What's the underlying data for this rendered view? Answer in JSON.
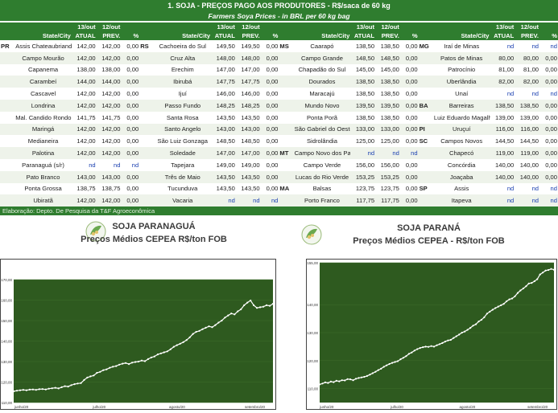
{
  "header": {
    "title": "1. SOJA - PREÇOS PAGO AOS PRODUTORES - R$/saca de 60 kg",
    "subtitle": "Farmers Soya Prices - in BRL per 60 kg bag"
  },
  "columns": {
    "state_city": "State/City",
    "d13_top": "13/out",
    "d13_bot": "ATUAL",
    "d12_top": "12/out",
    "d12_bot": "PREV.",
    "pct": "%"
  },
  "groups": [
    {
      "rows": [
        {
          "st": "PR",
          "city": "Assis Chateaubriand",
          "a": "142,00",
          "p": "142,00",
          "v": "0,00"
        },
        {
          "st": "",
          "city": "Campo Mourão",
          "a": "142,00",
          "p": "142,00",
          "v": "0,00"
        },
        {
          "st": "",
          "city": "Capanema",
          "a": "138,00",
          "p": "138,00",
          "v": "0,00"
        },
        {
          "st": "",
          "city": "Carambeí",
          "a": "144,00",
          "p": "144,00",
          "v": "0,00"
        },
        {
          "st": "",
          "city": "Cascavel",
          "a": "142,00",
          "p": "142,00",
          "v": "0,00"
        },
        {
          "st": "",
          "city": "Londrina",
          "a": "142,00",
          "p": "142,00",
          "v": "0,00"
        },
        {
          "st": "",
          "city": "Mal. Candido Rondon",
          "a": "141,75",
          "p": "141,75",
          "v": "0,00"
        },
        {
          "st": "",
          "city": "Maringá",
          "a": "142,00",
          "p": "142,00",
          "v": "0,00"
        },
        {
          "st": "",
          "city": "Medianeira",
          "a": "142,00",
          "p": "142,00",
          "v": "0,00"
        },
        {
          "st": "",
          "city": "Palotina",
          "a": "142,00",
          "p": "142,00",
          "v": "0,00"
        },
        {
          "st": "",
          "city": "Paranaguá (s/r)",
          "a": "nd",
          "p": "nd",
          "v": "nd"
        },
        {
          "st": "",
          "city": "Pato Branco",
          "a": "143,00",
          "p": "143,00",
          "v": "0,00"
        },
        {
          "st": "",
          "city": "Ponta Grossa",
          "a": "138,75",
          "p": "138,75",
          "v": "0,00"
        },
        {
          "st": "",
          "city": "Ubiratã",
          "a": "142,00",
          "p": "142,00",
          "v": "0,00"
        }
      ]
    },
    {
      "rows": [
        {
          "st": "RS",
          "city": "Cachoeira do Sul",
          "a": "149,50",
          "p": "149,50",
          "v": "0,00"
        },
        {
          "st": "",
          "city": "Cruz Alta",
          "a": "148,00",
          "p": "148,00",
          "v": "0,00"
        },
        {
          "st": "",
          "city": "Erechim",
          "a": "147,00",
          "p": "147,00",
          "v": "0,00"
        },
        {
          "st": "",
          "city": "Ibirubá",
          "a": "147,75",
          "p": "147,75",
          "v": "0,00"
        },
        {
          "st": "",
          "city": "Ijuí",
          "a": "146,00",
          "p": "146,00",
          "v": "0,00"
        },
        {
          "st": "",
          "city": "Passo Fundo",
          "a": "148,25",
          "p": "148,25",
          "v": "0,00"
        },
        {
          "st": "",
          "city": "Santa Rosa",
          "a": "143,50",
          "p": "143,50",
          "v": "0,00"
        },
        {
          "st": "",
          "city": "Santo Angelo",
          "a": "143,00",
          "p": "143,00",
          "v": "0,00"
        },
        {
          "st": "",
          "city": "São Luiz Gonzaga",
          "a": "148,50",
          "p": "148,50",
          "v": "0,00"
        },
        {
          "st": "",
          "city": "Soledade",
          "a": "147,00",
          "p": "147,00",
          "v": "0,00"
        },
        {
          "st": "",
          "city": "Tapejara",
          "a": "149,00",
          "p": "149,00",
          "v": "0,00"
        },
        {
          "st": "",
          "city": "Três de Maio",
          "a": "143,50",
          "p": "143,50",
          "v": "0,00"
        },
        {
          "st": "",
          "city": "Tucunduva",
          "a": "143,50",
          "p": "143,50",
          "v": "0,00"
        },
        {
          "st": "",
          "city": "Vacaria",
          "a": "nd",
          "p": "nd",
          "v": "nd"
        }
      ]
    },
    {
      "rows": [
        {
          "st": "MS",
          "city": "Caarapó",
          "a": "138,50",
          "p": "138,50",
          "v": "0,00"
        },
        {
          "st": "",
          "city": "Campo Grande",
          "a": "148,50",
          "p": "148,50",
          "v": "0,00"
        },
        {
          "st": "",
          "city": "Chapadão do Sul",
          "a": "145,00",
          "p": "145,00",
          "v": "0,00"
        },
        {
          "st": "",
          "city": "Dourados",
          "a": "138,50",
          "p": "138,50",
          "v": "0,00"
        },
        {
          "st": "",
          "city": "Maracajú",
          "a": "138,50",
          "p": "138,50",
          "v": "0,00"
        },
        {
          "st": "",
          "city": "Mundo Novo",
          "a": "139,50",
          "p": "139,50",
          "v": "0,00"
        },
        {
          "st": "",
          "city": "Ponta Porã",
          "a": "138,50",
          "p": "138,50",
          "v": "0,00"
        },
        {
          "st": "",
          "city": "São Gabriel do Oeste",
          "a": "133,00",
          "p": "133,00",
          "v": "0,00"
        },
        {
          "st": "",
          "city": "Sidrolândia",
          "a": "125,00",
          "p": "125,00",
          "v": "0,00"
        },
        {
          "st": "MT",
          "city": "Campo Novo dos Parecis",
          "a": "nd",
          "p": "nd",
          "v": "nd"
        },
        {
          "st": "",
          "city": "Campo Verde",
          "a": "156,00",
          "p": "156,00",
          "v": "0,00"
        },
        {
          "st": "",
          "city": "Lucas do Rio Verde",
          "a": "153,25",
          "p": "153,25",
          "v": "0,00"
        },
        {
          "st": "MA",
          "city": "Balsas",
          "a": "123,75",
          "p": "123,75",
          "v": "0,00"
        },
        {
          "st": "",
          "city": "Porto Franco",
          "a": "117,75",
          "p": "117,75",
          "v": "0,00"
        }
      ]
    },
    {
      "rows": [
        {
          "st": "MG",
          "city": "Iraí de Minas",
          "a": "nd",
          "p": "nd",
          "v": "nd"
        },
        {
          "st": "",
          "city": "Patos de Minas",
          "a": "80,00",
          "p": "80,00",
          "v": "0,00"
        },
        {
          "st": "",
          "city": "Patrocínio",
          "a": "81,00",
          "p": "81,00",
          "v": "0,00"
        },
        {
          "st": "",
          "city": "Uberlândia",
          "a": "82,00",
          "p": "82,00",
          "v": "0,00"
        },
        {
          "st": "",
          "city": "Unaí",
          "a": "nd",
          "p": "nd",
          "v": "nd"
        },
        {
          "st": "BA",
          "city": "Barreiras",
          "a": "138,50",
          "p": "138,50",
          "v": "0,00"
        },
        {
          "st": "",
          "city": "Luiz Eduardo Magalhães",
          "a": "139,00",
          "p": "139,00",
          "v": "0,00"
        },
        {
          "st": "PI",
          "city": "Uruçuí",
          "a": "116,00",
          "p": "116,00",
          "v": "0,00"
        },
        {
          "st": "SC",
          "city": "Campos Novos",
          "a": "144,50",
          "p": "144,50",
          "v": "0,00"
        },
        {
          "st": "",
          "city": "Chapecó",
          "a": "119,00",
          "p": "119,00",
          "v": "0,00"
        },
        {
          "st": "",
          "city": "Concórdia",
          "a": "140,00",
          "p": "140,00",
          "v": "0,00"
        },
        {
          "st": "",
          "city": "Joaçaba",
          "a": "140,00",
          "p": "140,00",
          "v": "0,00"
        },
        {
          "st": "SP",
          "city": "Assis",
          "a": "nd",
          "p": "nd",
          "v": "nd"
        },
        {
          "st": "",
          "city": "Itapeva",
          "a": "nd",
          "p": "nd",
          "v": "nd"
        }
      ]
    }
  ],
  "footer": "Elaboração: Depto. De Pesquisa da T&F Agroeconômica",
  "colors": {
    "green": "#2f7d2f",
    "chart_bg": "#2e5a1f",
    "line": "#ffffff",
    "nd": "#1a3fb0"
  },
  "chart_data": [
    {
      "type": "line",
      "title": "SOJA PARANAGUÁ",
      "subtitle": "Preços Médios CEPEA R$/ton FOB",
      "ylim": [
        110,
        170
      ],
      "yticks": [
        "170,00",
        "160,00",
        "150,00",
        "140,00",
        "130,00",
        "120,00",
        "110,00"
      ],
      "xticks": [
        "junho/20",
        "julho/20",
        "agosto/20",
        "setembro/20"
      ],
      "values": [
        115.5,
        115.8,
        116,
        116.2,
        116,
        116.3,
        116.4,
        116.2,
        116.5,
        116.6,
        116.4,
        116.8,
        117,
        117.2,
        116.9,
        117.5,
        118,
        117.8,
        118.5,
        119,
        119.3,
        119.5,
        121,
        122.2,
        122.8,
        123.2,
        124.5,
        125,
        125.8,
        126.2,
        127,
        127.5,
        127.8,
        128.5,
        129,
        129.3,
        128.8,
        129.5,
        129.8,
        130,
        130.5,
        130.2,
        131.2,
        132,
        132.5,
        133.5,
        134,
        134.5,
        135,
        136,
        137.2,
        138,
        138.7,
        139.5,
        140.5,
        141.8,
        143.5,
        144.5,
        145,
        145.8,
        146.5,
        147.2,
        146.8,
        147.8,
        149,
        150,
        151.5,
        152.5,
        153.5,
        153,
        154.5,
        155.5,
        157.5,
        158.8,
        159.8,
        157.5,
        156.2,
        156.5,
        156.8,
        157.5,
        157.2,
        158.2
      ]
    },
    {
      "type": "line",
      "title": "SOJA PARANÁ",
      "subtitle": "Preços Médios CEPEA - R$/ton FOB",
      "ylim": [
        105,
        155
      ],
      "yticks": [
        "155,00",
        "140,00",
        "130,00",
        "120,00",
        "110,00"
      ],
      "xticks": [
        "junho/20",
        "julho/20",
        "agosto/20",
        "setembro/20"
      ],
      "values": [
        111.5,
        111.8,
        112.2,
        112,
        112.5,
        112.3,
        112.8,
        112.6,
        113,
        112.9,
        113.4,
        113.3,
        113,
        113.5,
        113.8,
        114,
        114.2,
        114.5,
        115,
        115.5,
        116,
        116.6,
        117.1,
        117.8,
        118.3,
        118.8,
        119.2,
        119.5,
        119.8,
        120.5,
        121,
        121.6,
        122.4,
        122.9,
        123.6,
        124.1,
        124.5,
        124.8,
        125,
        124.9,
        125.2,
        125,
        125.5,
        125.9,
        126.3,
        126.8,
        127.2,
        127.4,
        128.1,
        128.7,
        129.3,
        130,
        130.4,
        131,
        131.7,
        132.5,
        133,
        134,
        134.6,
        135.5,
        136.8,
        137.5,
        138.2,
        138.8,
        139.3,
        139.8,
        140.3,
        141.2,
        141.9,
        142.2,
        143,
        144.2,
        145.1,
        145.8,
        146.6,
        147.6,
        147.8,
        148.4,
        149.1,
        150.8,
        151.5,
        152.2,
        152.4,
        152.8,
        152.5
      ]
    }
  ]
}
